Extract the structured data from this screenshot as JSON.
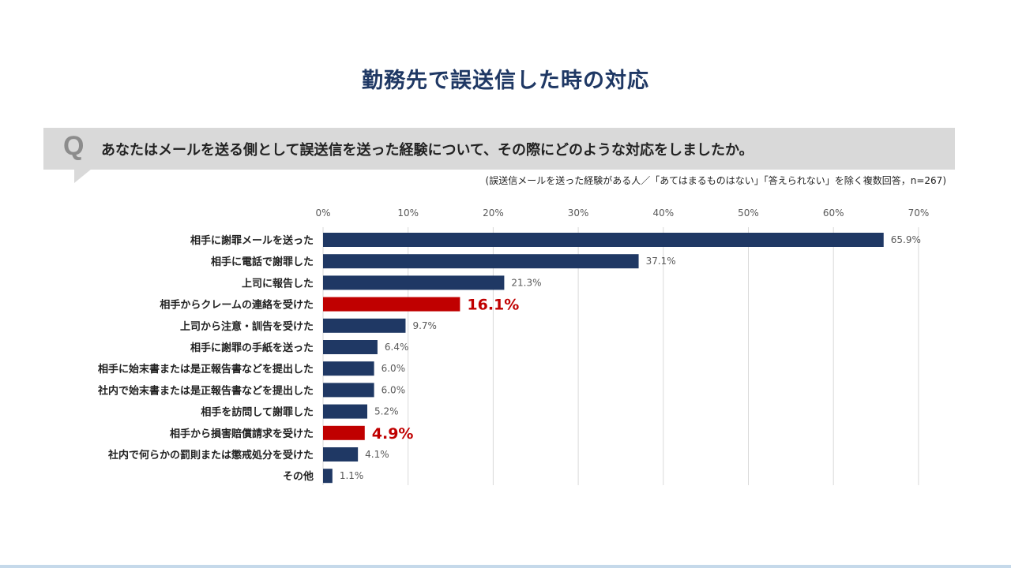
{
  "header": {
    "title": "勤務先で誤送信した時の対応",
    "q_letter": "Q",
    "question": "あなたはメールを送る側として誤送信を送った経験について、その際にどのような対応をしましたか。",
    "note": "(誤送信メールを送った経験がある人／「あてはまるものはない」「答えられない」を除く複数回答，n=267)"
  },
  "colors": {
    "bar": "#1f3864",
    "highlight": "#c00000",
    "grid": "#d9d9d9",
    "title": "#1f3864"
  },
  "chart_data": {
    "type": "bar",
    "orientation": "horizontal",
    "title": "勤務先で誤送信した時の対応",
    "xlim": [
      0,
      70
    ],
    "x_ticks": [
      0,
      10,
      20,
      30,
      40,
      50,
      60,
      70
    ],
    "x_tick_labels": [
      "0%",
      "10%",
      "20%",
      "30%",
      "40%",
      "50%",
      "60%",
      "70%"
    ],
    "categories": [
      "相手に謝罪メールを送った",
      "相手に電話で謝罪した",
      "上司に報告した",
      "相手からクレームの連絡を受けた",
      "上司から注意・訓告を受けた",
      "相手に謝罪の手紙を送った",
      "相手に始末書または是正報告書などを提出した",
      "社内で始末書または是正報告書などを提出した",
      "相手を訪問して謝罪した",
      "相手から損害賠償請求を受けた",
      "社内で何らかの罰則または懲戒処分を受けた",
      "その他"
    ],
    "values": [
      65.9,
      37.1,
      21.3,
      16.1,
      9.7,
      6.4,
      6.0,
      6.0,
      5.2,
      4.9,
      4.1,
      1.1
    ],
    "value_labels": [
      "65.9%",
      "37.1%",
      "21.3%",
      "16.1%",
      "9.7%",
      "6.4%",
      "6.0%",
      "6.0%",
      "5.2%",
      "4.9%",
      "4.1%",
      "1.1%"
    ],
    "highlighted": [
      false,
      false,
      false,
      true,
      false,
      false,
      false,
      false,
      false,
      true,
      false,
      false
    ]
  }
}
